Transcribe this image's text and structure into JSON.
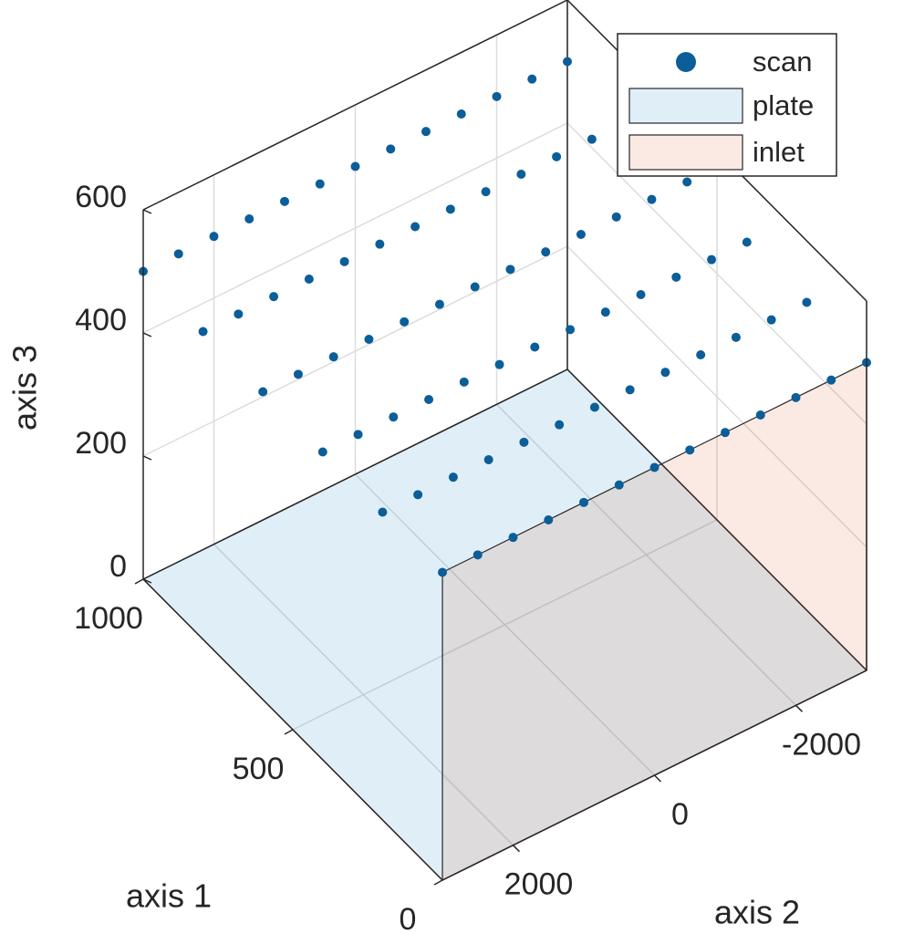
{
  "chart_data": {
    "type": "scatter3d",
    "xlabel": "axis 1",
    "ylabel": "axis 2",
    "zlabel": "axis 3",
    "xlim": [
      0,
      1000
    ],
    "ylim": [
      -3000,
      3000
    ],
    "zlim": [
      0,
      600
    ],
    "xticks": [
      0,
      500,
      1000
    ],
    "yticks": [
      -2000,
      0,
      2000
    ],
    "zticks": [
      0,
      200,
      400,
      600
    ],
    "grid": true,
    "series": [
      {
        "name": "scan",
        "color": "#0b5e98",
        "x": [
          0,
          0,
          0,
          0,
          0,
          0,
          0,
          0,
          0,
          0,
          0,
          0,
          0,
          200,
          200,
          200,
          200,
          200,
          200,
          200,
          200,
          200,
          200,
          200,
          200,
          200,
          400,
          400,
          400,
          400,
          400,
          400,
          400,
          400,
          400,
          400,
          400,
          400,
          400,
          600,
          600,
          600,
          600,
          600,
          600,
          600,
          600,
          600,
          600,
          600,
          600,
          600,
          800,
          800,
          800,
          800,
          800,
          800,
          800,
          800,
          800,
          800,
          800,
          800,
          800,
          1000,
          1000,
          1000,
          1000,
          1000,
          1000,
          1000,
          1000,
          1000,
          1000,
          1000,
          1000,
          1000
        ],
        "y": [
          3000,
          2500,
          2000,
          1500,
          1000,
          500,
          0,
          -500,
          -1000,
          -1500,
          -2000,
          -2500,
          -3000,
          3000,
          2500,
          2000,
          1500,
          1000,
          500,
          0,
          -500,
          -1000,
          -1500,
          -2000,
          -2500,
          -3000,
          3000,
          2500,
          2000,
          1500,
          1000,
          500,
          0,
          -500,
          -1000,
          -1500,
          -2000,
          -2500,
          -3000,
          3000,
          2500,
          2000,
          1500,
          1000,
          500,
          0,
          -500,
          -1000,
          -1500,
          -2000,
          -2500,
          -3000,
          3000,
          2500,
          2000,
          1500,
          1000,
          500,
          0,
          -500,
          -1000,
          -1500,
          -2000,
          -2500,
          -3000,
          3000,
          2500,
          2000,
          1500,
          1000,
          500,
          0,
          -500,
          -1000,
          -1500,
          -2000,
          -2500,
          -3000
        ],
        "z": [
          500,
          500,
          500,
          500,
          500,
          500,
          500,
          500,
          500,
          500,
          500,
          500,
          500,
          500,
          500,
          500,
          500,
          500,
          500,
          500,
          500,
          500,
          500,
          500,
          500,
          500,
          500,
          500,
          500,
          500,
          500,
          500,
          500,
          500,
          500,
          500,
          500,
          500,
          500,
          500,
          500,
          500,
          500,
          500,
          500,
          500,
          500,
          500,
          500,
          500,
          500,
          500,
          500,
          500,
          500,
          500,
          500,
          500,
          500,
          500,
          500,
          500,
          500,
          500,
          500,
          500,
          500,
          500,
          500,
          500,
          500,
          500,
          500,
          500,
          500,
          500,
          500,
          500
        ]
      }
    ],
    "surfaces": [
      {
        "name": "plate",
        "color": "#0072bd",
        "x": [
          0,
          1000,
          1000,
          0
        ],
        "y": [
          3000,
          3000,
          -3000,
          -3000
        ],
        "z": [
          0,
          0,
          0,
          0
        ]
      },
      {
        "name": "inlet",
        "color": "#d95319",
        "x": [
          0,
          0,
          0,
          0
        ],
        "y": [
          3000,
          -3000,
          -3000,
          3000
        ],
        "z": [
          0,
          0,
          500,
          500
        ]
      }
    ],
    "legend": "northeast"
  }
}
